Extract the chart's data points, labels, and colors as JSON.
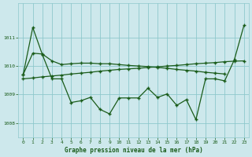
{
  "title": "Graphe pression niveau de la mer (hPa)",
  "bg_color": "#cde8ec",
  "grid_color": "#8ec8cc",
  "line_color": "#1a5c1a",
  "xlim": [
    -0.5,
    23.5
  ],
  "ylim": [
    1007.5,
    1012.2
  ],
  "yticks": [
    1008,
    1009,
    1010,
    1011
  ],
  "xticks": [
    0,
    1,
    2,
    3,
    4,
    5,
    6,
    7,
    8,
    9,
    10,
    11,
    12,
    13,
    14,
    15,
    16,
    17,
    18,
    19,
    20,
    21,
    22,
    23
  ],
  "lineA_x": [
    0,
    1,
    2,
    3,
    4,
    5,
    6,
    7,
    8,
    9,
    10,
    11,
    12,
    13,
    14,
    15,
    16,
    17,
    18,
    19,
    20,
    21,
    22,
    23
  ],
  "lineA_y": [
    1009.7,
    1011.35,
    1010.4,
    1009.55,
    1009.55,
    1008.72,
    1008.78,
    1008.9,
    1008.48,
    1008.32,
    1008.88,
    1008.88,
    1008.88,
    1009.22,
    1008.9,
    1009.02,
    1008.62,
    1008.82,
    1008.12,
    1009.55,
    1009.55,
    1009.48,
    1010.22,
    1011.42
  ],
  "lineB_x": [
    0,
    1,
    2,
    3,
    4,
    5,
    6,
    7,
    8,
    9,
    10,
    11,
    12,
    13,
    14,
    15,
    16,
    17,
    18,
    19,
    20,
    21
  ],
  "lineB_y": [
    1009.7,
    1010.45,
    1010.42,
    1010.18,
    1010.05,
    1010.08,
    1010.1,
    1010.1,
    1010.08,
    1010.08,
    1010.05,
    1010.02,
    1010.0,
    1009.98,
    1009.95,
    1009.92,
    1009.88,
    1009.85,
    1009.82,
    1009.78,
    1009.75,
    1009.72
  ],
  "lineC_x": [
    0,
    1,
    2,
    3,
    4,
    5,
    6,
    7,
    8,
    9,
    10,
    11,
    12,
    13,
    14,
    15,
    16,
    17,
    18,
    19,
    20,
    21,
    22,
    23
  ],
  "lineC_y": [
    1009.55,
    1009.58,
    1009.62,
    1009.65,
    1009.68,
    1009.72,
    1009.75,
    1009.78,
    1009.82,
    1009.85,
    1009.88,
    1009.9,
    1009.92,
    1009.95,
    1009.97,
    1010.0,
    1010.02,
    1010.05,
    1010.08,
    1010.1,
    1010.12,
    1010.15,
    1010.17,
    1010.18
  ]
}
